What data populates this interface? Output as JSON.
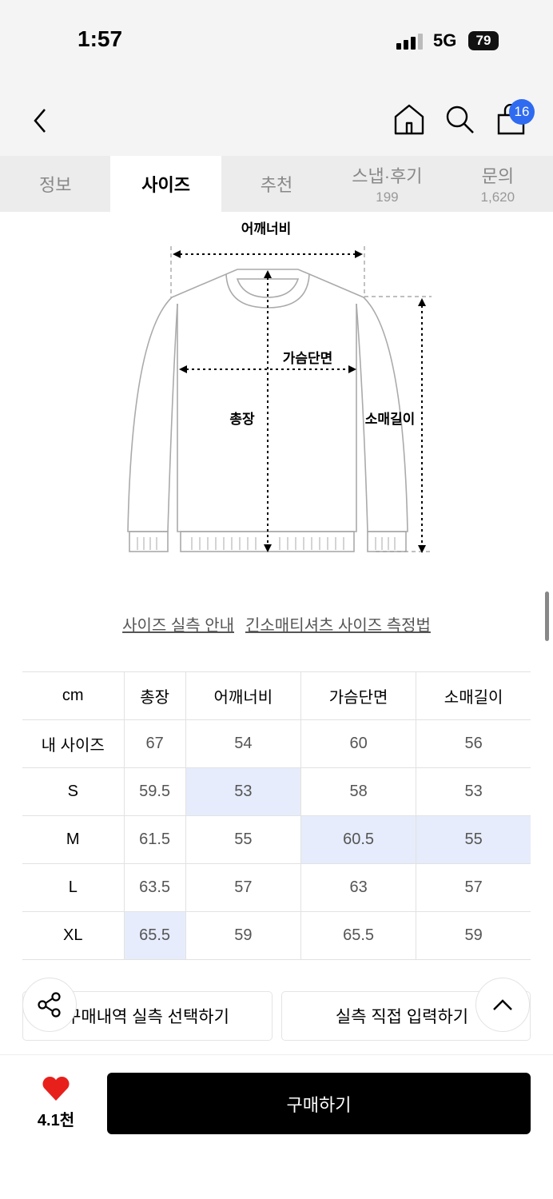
{
  "status_bar": {
    "time": "1:57",
    "network": "5G",
    "battery": "79"
  },
  "header": {
    "cart_count": "16"
  },
  "tabs": [
    {
      "label": "정보"
    },
    {
      "label": "사이즈",
      "active": true
    },
    {
      "label": "추천"
    },
    {
      "label": "스냅·후기",
      "count": "199"
    },
    {
      "label": "문의",
      "count": "1,620"
    }
  ],
  "diagram": {
    "shoulder": "어깨너비",
    "chest": "가슴단면",
    "length": "총장",
    "sleeve": "소매길이"
  },
  "links": {
    "guide": "사이즈 실측 안내",
    "method": "긴소매티셔츠 사이즈 측정법"
  },
  "size_table": {
    "headers": [
      "cm",
      "총장",
      "어깨너비",
      "가슴단면",
      "소매길이"
    ],
    "rows": [
      {
        "label": "내 사이즈",
        "values": [
          "67",
          "54",
          "60",
          "56"
        ]
      },
      {
        "label": "S",
        "values": [
          "59.5",
          "53",
          "58",
          "53"
        ],
        "highlight": [
          1
        ]
      },
      {
        "label": "M",
        "values": [
          "61.5",
          "55",
          "60.5",
          "55"
        ],
        "highlight": [
          2,
          3
        ]
      },
      {
        "label": "L",
        "values": [
          "63.5",
          "57",
          "63",
          "57"
        ],
        "highlight": []
      },
      {
        "label": "XL",
        "values": [
          "65.5",
          "59",
          "65.5",
          "59"
        ],
        "highlight": [
          0
        ]
      }
    ],
    "highlight_color": "#e6ecfb"
  },
  "actions": {
    "purchase_history": "구매내역 실측 선택하기",
    "direct_input": "실측 직접 입력하기"
  },
  "bottom": {
    "likes": "4.1천",
    "buy": "구매하기",
    "heart_color": "#e8201c"
  }
}
